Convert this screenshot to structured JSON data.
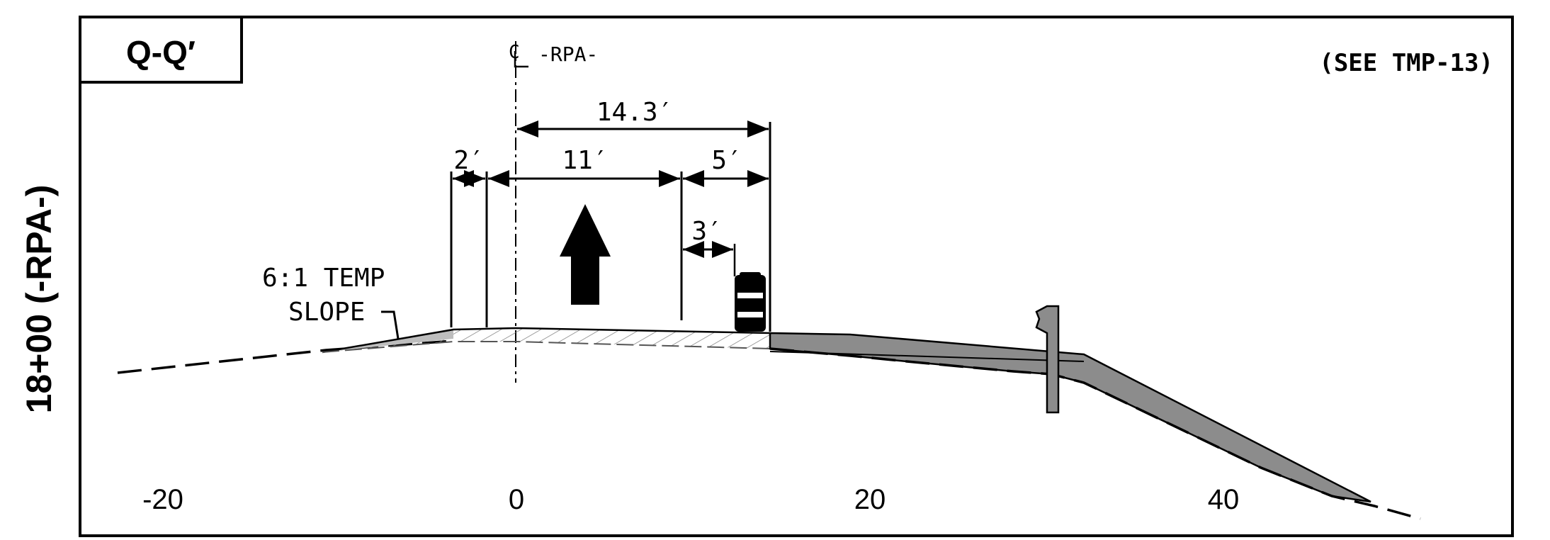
{
  "section": {
    "id_label": "Q-Q′",
    "reference_note": "(SEE TMP-13)",
    "station_label": "18+00 (-RPA-)"
  },
  "centerline": {
    "symbol": "C",
    "alignment": "-RPA-"
  },
  "dimensions": {
    "total": "14.3′",
    "left_shoulder": "2′",
    "lane": "11′",
    "right_offset": "5′",
    "barrel_offset": "3′"
  },
  "slope_note": {
    "line1": "6:1 TEMP",
    "line2": "SLOPE"
  },
  "axis": {
    "ticks": [
      "-20",
      "0",
      "20",
      "40"
    ]
  },
  "colors": {
    "line": "#000000",
    "fill_gray": "#8c8c8c",
    "hatch": "#6e6e6e"
  }
}
